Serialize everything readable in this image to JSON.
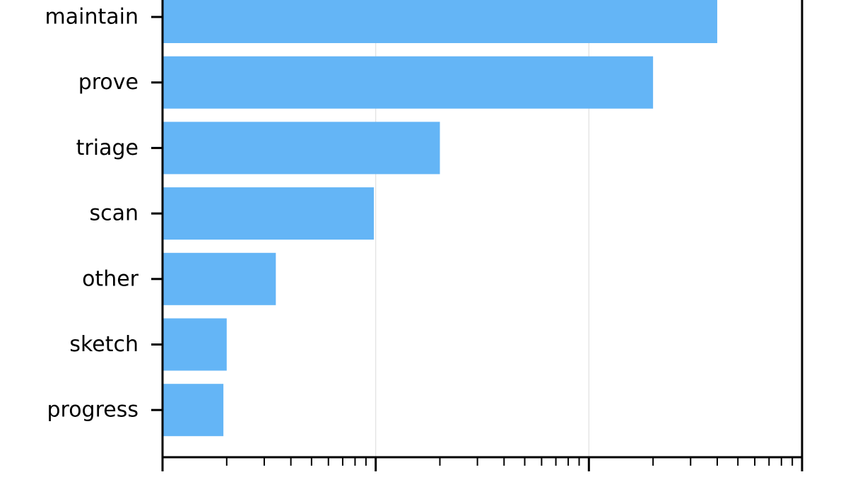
{
  "chart_data": {
    "type": "bar",
    "orientation": "horizontal",
    "x_scale": "log",
    "xlim": [
      1,
      1000
    ],
    "grid": {
      "x": true,
      "y": false
    },
    "categories": [
      "maintain",
      "prove",
      "triage",
      "scan",
      "other",
      "sketch",
      "progress"
    ],
    "values": [
      400,
      200,
      20,
      9.8,
      3.4,
      2.0,
      1.93
    ],
    "bar_color": "#64b5f6",
    "title": "",
    "xlabel": "",
    "ylabel": ""
  }
}
